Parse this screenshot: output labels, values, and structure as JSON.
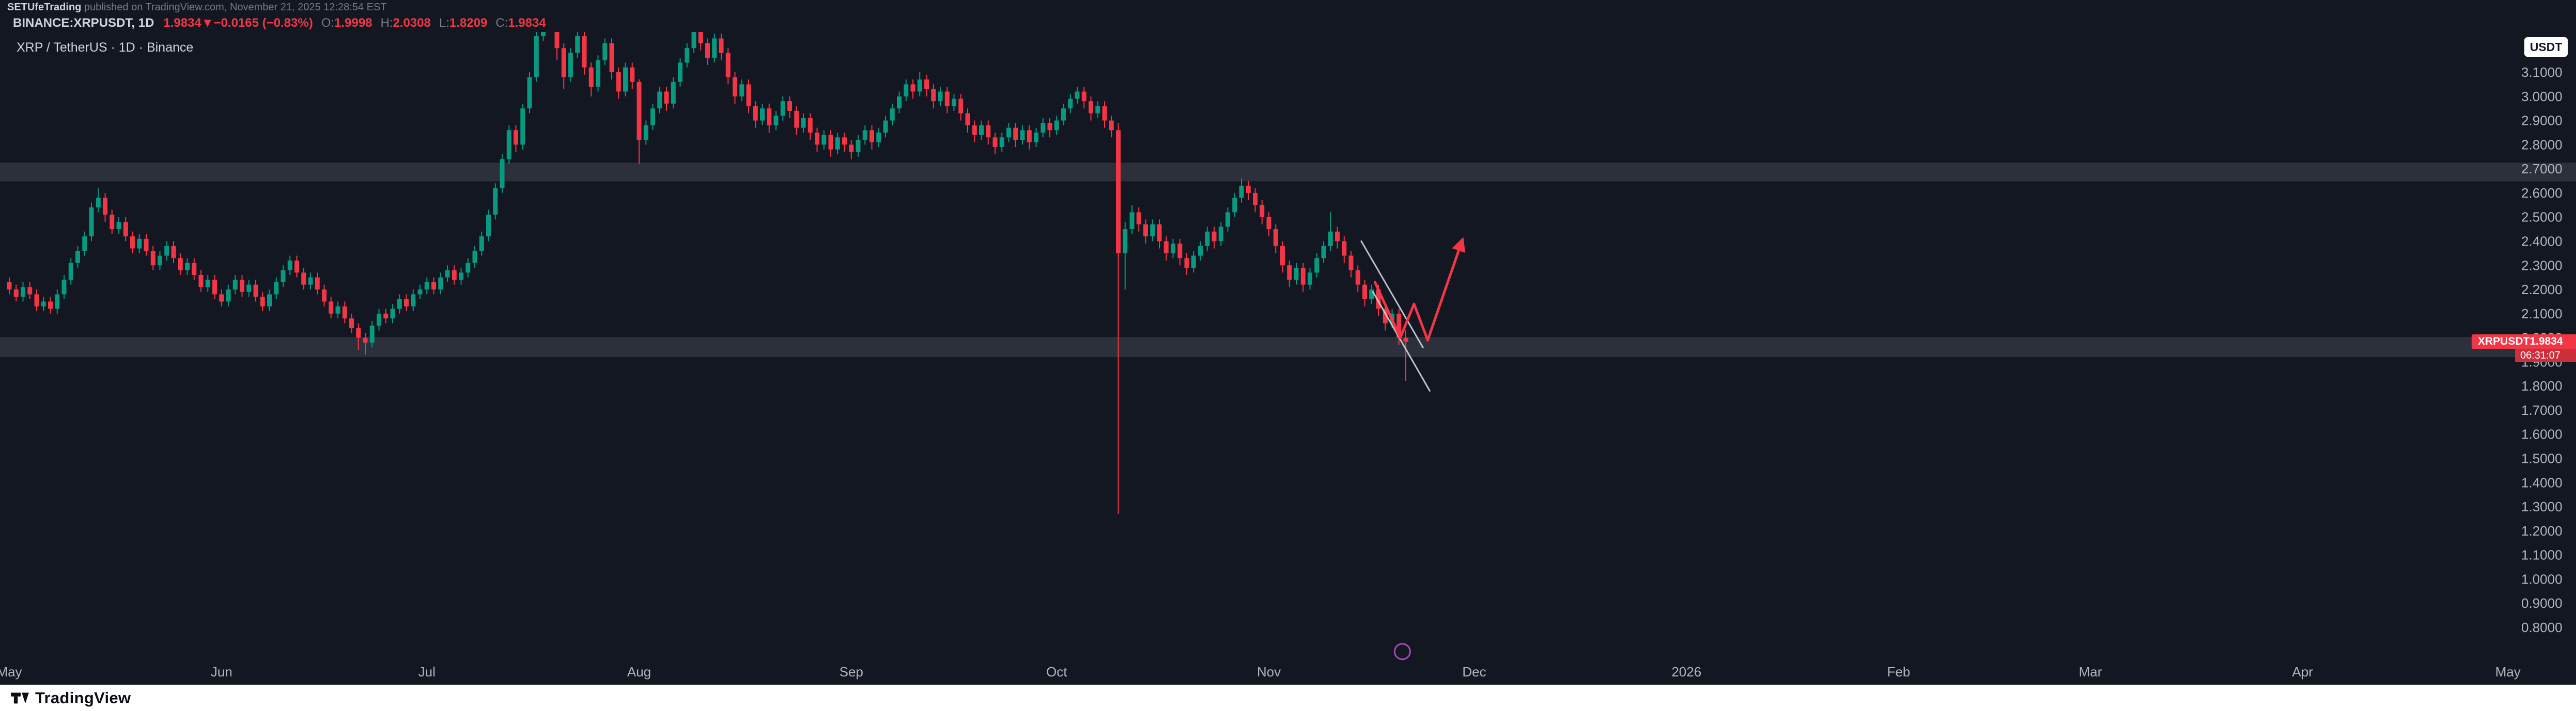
{
  "attribution": {
    "author": "SETUfeTrading",
    "text": " published on TradingView.com, November 21, 2025 12:28:54 EST"
  },
  "symbol_bar": {
    "symbol": "BINANCE:XRPUSDT, 1D",
    "price": "1.9834",
    "direction": "▼",
    "change": "−0.0165 (−0.83%)",
    "o_label": "O:",
    "o": "1.9998",
    "h_label": "H:",
    "h": "2.0308",
    "l_label": "L:",
    "l": "1.8209",
    "c_label": "C:",
    "c": "1.9834"
  },
  "chart_header": {
    "legend": "XRP / TetherUS · 1D · Binance",
    "currency_button": "USDT"
  },
  "price_label": {
    "symbol": "XRPUSDT",
    "price": "1.9834",
    "countdown": "06:31:07"
  },
  "footer": {
    "brand": "TradingView"
  },
  "colors": {
    "background": "#131722",
    "up": "#089981",
    "down": "#f23645",
    "axis_text": "#b2b5be"
  },
  "chart_data": {
    "type": "candlestick",
    "symbol": "XRP/USDT",
    "exchange": "Binance",
    "timeframe": "1D",
    "start_date": "2025-05-01",
    "last_close": 1.9834,
    "ylim_visible": [
      0.64,
      3.26
    ],
    "up_color": "#089981",
    "down_color": "#f23645",
    "zone_color": "rgba(178,181,190,0.16)",
    "price_axis": {
      "labels": [
        "3.1000",
        "3.0000",
        "2.9000",
        "2.8000",
        "2.7000",
        "2.6000",
        "2.5000",
        "2.4000",
        "2.3000",
        "2.2000",
        "2.1000",
        "2.0000",
        "1.9000",
        "1.8000",
        "1.7000",
        "1.6000",
        "1.5000",
        "1.4000",
        "1.3000",
        "1.2000",
        "1.1000",
        "1.0000",
        "0.9000",
        "0.8000"
      ]
    },
    "time_axis": [
      {
        "label": "May",
        "day": 0
      },
      {
        "label": "Jun",
        "day": 31
      },
      {
        "label": "Jul",
        "day": 61
      },
      {
        "label": "Aug",
        "day": 92
      },
      {
        "label": "Sep",
        "day": 123
      },
      {
        "label": "Oct",
        "day": 153
      },
      {
        "label": "Nov",
        "day": 184
      },
      {
        "label": "Dec",
        "day": 214
      },
      {
        "label": "2026",
        "day": 245
      },
      {
        "label": "Feb",
        "day": 276
      },
      {
        "label": "Mar",
        "day": 304
      },
      {
        "label": "Apr",
        "day": 335
      },
      {
        "label": "May",
        "day": 365
      }
    ],
    "zones": [
      {
        "from": 2.725,
        "to": 2.648,
        "name": "resistance-zone"
      },
      {
        "from": 2.003,
        "to": 1.92,
        "name": "support-zone"
      }
    ],
    "drawings": {
      "trendline_color": "#d1d4dc",
      "trendlines": [
        {
          "points": [
            [
              197.5,
              2.4
            ],
            [
              206.5,
              1.96
            ]
          ]
        },
        {
          "points": [
            [
              199.2,
              2.19
            ],
            [
              207.5,
              1.78
            ]
          ]
        }
      ],
      "arrow": {
        "color": "#f23645",
        "points": [
          [
            199.5,
            2.23
          ],
          [
            203.2,
            2.0
          ],
          [
            205.2,
            2.14
          ],
          [
            207.2,
            1.99
          ],
          [
            212.2,
            2.4
          ]
        ]
      },
      "marker_circle": {
        "day": 203.5,
        "price": 0.7,
        "color": "#ab47bc"
      }
    },
    "candles": [
      [
        2.23,
        2.25,
        2.18,
        2.2
      ],
      [
        2.2,
        2.22,
        2.15,
        2.17
      ],
      [
        2.17,
        2.23,
        2.15,
        2.21
      ],
      [
        2.21,
        2.23,
        2.16,
        2.18
      ],
      [
        2.18,
        2.2,
        2.11,
        2.13
      ],
      [
        2.13,
        2.17,
        2.11,
        2.15
      ],
      [
        2.15,
        2.17,
        2.1,
        2.12
      ],
      [
        2.12,
        2.2,
        2.1,
        2.18
      ],
      [
        2.18,
        2.26,
        2.16,
        2.24
      ],
      [
        2.24,
        2.33,
        2.22,
        2.31
      ],
      [
        2.31,
        2.38,
        2.29,
        2.36
      ],
      [
        2.36,
        2.44,
        2.34,
        2.42
      ],
      [
        2.42,
        2.56,
        2.4,
        2.54
      ],
      [
        2.54,
        2.62,
        2.52,
        2.58
      ],
      [
        2.58,
        2.6,
        2.48,
        2.51
      ],
      [
        2.51,
        2.53,
        2.43,
        2.45
      ],
      [
        2.45,
        2.5,
        2.43,
        2.48
      ],
      [
        2.48,
        2.5,
        2.4,
        2.42
      ],
      [
        2.42,
        2.44,
        2.35,
        2.37
      ],
      [
        2.37,
        2.43,
        2.35,
        2.41
      ],
      [
        2.41,
        2.43,
        2.34,
        2.36
      ],
      [
        2.36,
        2.38,
        2.28,
        2.3
      ],
      [
        2.3,
        2.36,
        2.28,
        2.34
      ],
      [
        2.34,
        2.4,
        2.32,
        2.38
      ],
      [
        2.38,
        2.4,
        2.31,
        2.33
      ],
      [
        2.33,
        2.35,
        2.26,
        2.28
      ],
      [
        2.28,
        2.33,
        2.26,
        2.31
      ],
      [
        2.31,
        2.33,
        2.24,
        2.26
      ],
      [
        2.26,
        2.28,
        2.19,
        2.21
      ],
      [
        2.21,
        2.26,
        2.19,
        2.24
      ],
      [
        2.24,
        2.26,
        2.16,
        2.18
      ],
      [
        2.18,
        2.2,
        2.13,
        2.15
      ],
      [
        2.15,
        2.22,
        2.13,
        2.2
      ],
      [
        2.2,
        2.26,
        2.18,
        2.24
      ],
      [
        2.24,
        2.26,
        2.17,
        2.19
      ],
      [
        2.19,
        2.24,
        2.17,
        2.22
      ],
      [
        2.22,
        2.24,
        2.15,
        2.17
      ],
      [
        2.17,
        2.19,
        2.11,
        2.13
      ],
      [
        2.13,
        2.2,
        2.11,
        2.18
      ],
      [
        2.18,
        2.25,
        2.16,
        2.23
      ],
      [
        2.23,
        2.3,
        2.21,
        2.28
      ],
      [
        2.28,
        2.34,
        2.26,
        2.32
      ],
      [
        2.32,
        2.34,
        2.25,
        2.27
      ],
      [
        2.27,
        2.29,
        2.2,
        2.22
      ],
      [
        2.22,
        2.27,
        2.2,
        2.25
      ],
      [
        2.25,
        2.27,
        2.18,
        2.2
      ],
      [
        2.2,
        2.22,
        2.13,
        2.15
      ],
      [
        2.15,
        2.17,
        2.08,
        2.1
      ],
      [
        2.1,
        2.15,
        2.08,
        2.13
      ],
      [
        2.13,
        2.15,
        2.06,
        2.08
      ],
      [
        2.08,
        2.1,
        2.02,
        2.04
      ],
      [
        2.04,
        2.06,
        1.95,
        2.0
      ],
      [
        2.0,
        2.02,
        1.93,
        1.98
      ],
      [
        1.98,
        2.07,
        1.96,
        2.05
      ],
      [
        2.05,
        2.12,
        2.03,
        2.1
      ],
      [
        2.1,
        2.12,
        2.06,
        2.08
      ],
      [
        2.08,
        2.14,
        2.06,
        2.12
      ],
      [
        2.12,
        2.18,
        2.1,
        2.16
      ],
      [
        2.16,
        2.18,
        2.11,
        2.13
      ],
      [
        2.13,
        2.2,
        2.11,
        2.18
      ],
      [
        2.18,
        2.22,
        2.16,
        2.2
      ],
      [
        2.2,
        2.25,
        2.18,
        2.23
      ],
      [
        2.23,
        2.25,
        2.18,
        2.2
      ],
      [
        2.2,
        2.27,
        2.18,
        2.25
      ],
      [
        2.25,
        2.3,
        2.23,
        2.28
      ],
      [
        2.28,
        2.3,
        2.22,
        2.24
      ],
      [
        2.24,
        2.29,
        2.22,
        2.27
      ],
      [
        2.27,
        2.33,
        2.25,
        2.31
      ],
      [
        2.31,
        2.38,
        2.29,
        2.36
      ],
      [
        2.36,
        2.44,
        2.34,
        2.42
      ],
      [
        2.42,
        2.53,
        2.4,
        2.51
      ],
      [
        2.51,
        2.64,
        2.49,
        2.62
      ],
      [
        2.62,
        2.76,
        2.6,
        2.74
      ],
      [
        2.74,
        2.88,
        2.72,
        2.86
      ],
      [
        2.86,
        2.88,
        2.77,
        2.8
      ],
      [
        2.8,
        2.97,
        2.78,
        2.95
      ],
      [
        2.95,
        3.1,
        2.93,
        3.08
      ],
      [
        3.08,
        3.27,
        3.06,
        3.25
      ],
      [
        3.25,
        3.65,
        3.23,
        3.45
      ],
      [
        3.45,
        3.55,
        3.33,
        3.38
      ],
      [
        3.38,
        3.4,
        3.15,
        3.2
      ],
      [
        3.2,
        3.22,
        3.03,
        3.08
      ],
      [
        3.08,
        3.2,
        3.06,
        3.18
      ],
      [
        3.18,
        3.28,
        3.16,
        3.25
      ],
      [
        3.25,
        3.27,
        3.09,
        3.12
      ],
      [
        3.12,
        3.14,
        3.0,
        3.04
      ],
      [
        3.04,
        3.17,
        3.02,
        3.15
      ],
      [
        3.15,
        3.24,
        3.13,
        3.22
      ],
      [
        3.22,
        3.24,
        3.07,
        3.1
      ],
      [
        3.1,
        3.12,
        2.99,
        3.02
      ],
      [
        3.02,
        3.14,
        3.0,
        3.12
      ],
      [
        3.12,
        3.14,
        3.03,
        3.06
      ],
      [
        3.06,
        3.07,
        2.72,
        2.82
      ],
      [
        2.82,
        2.9,
        2.8,
        2.88
      ],
      [
        2.88,
        2.97,
        2.86,
        2.95
      ],
      [
        2.95,
        3.04,
        2.93,
        3.02
      ],
      [
        3.02,
        3.04,
        2.94,
        2.97
      ],
      [
        2.97,
        3.08,
        2.95,
        3.06
      ],
      [
        3.06,
        3.16,
        3.04,
        3.14
      ],
      [
        3.14,
        3.22,
        3.12,
        3.2
      ],
      [
        3.2,
        3.31,
        3.18,
        3.28
      ],
      [
        3.28,
        3.3,
        3.19,
        3.22
      ],
      [
        3.22,
        3.24,
        3.13,
        3.16
      ],
      [
        3.16,
        3.26,
        3.14,
        3.24
      ],
      [
        3.24,
        3.26,
        3.15,
        3.18
      ],
      [
        3.18,
        3.2,
        3.05,
        3.08
      ],
      [
        3.08,
        3.1,
        2.97,
        3.0
      ],
      [
        3.0,
        3.07,
        2.98,
        3.05
      ],
      [
        3.05,
        3.07,
        2.93,
        2.96
      ],
      [
        2.96,
        2.98,
        2.87,
        2.9
      ],
      [
        2.9,
        2.97,
        2.88,
        2.95
      ],
      [
        2.95,
        2.97,
        2.85,
        2.88
      ],
      [
        2.88,
        2.94,
        2.86,
        2.92
      ],
      [
        2.92,
        3.0,
        2.9,
        2.98
      ],
      [
        2.98,
        3.0,
        2.91,
        2.94
      ],
      [
        2.94,
        2.96,
        2.84,
        2.87
      ],
      [
        2.87,
        2.93,
        2.85,
        2.91
      ],
      [
        2.91,
        2.93,
        2.82,
        2.85
      ],
      [
        2.85,
        2.87,
        2.77,
        2.8
      ],
      [
        2.8,
        2.86,
        2.78,
        2.84
      ],
      [
        2.84,
        2.86,
        2.75,
        2.78
      ],
      [
        2.78,
        2.85,
        2.76,
        2.83
      ],
      [
        2.83,
        2.85,
        2.77,
        2.8
      ],
      [
        2.8,
        2.82,
        2.74,
        2.77
      ],
      [
        2.77,
        2.84,
        2.75,
        2.82
      ],
      [
        2.82,
        2.88,
        2.8,
        2.86
      ],
      [
        2.86,
        2.88,
        2.78,
        2.81
      ],
      [
        2.81,
        2.87,
        2.79,
        2.85
      ],
      [
        2.85,
        2.92,
        2.83,
        2.9
      ],
      [
        2.9,
        2.97,
        2.88,
        2.95
      ],
      [
        2.95,
        3.02,
        2.93,
        3.0
      ],
      [
        3.0,
        3.07,
        2.98,
        3.05
      ],
      [
        3.05,
        3.07,
        2.99,
        3.02
      ],
      [
        3.02,
        3.1,
        3.0,
        3.07
      ],
      [
        3.07,
        3.09,
        3.0,
        3.03
      ],
      [
        3.03,
        3.05,
        2.95,
        2.98
      ],
      [
        2.98,
        3.04,
        2.96,
        3.02
      ],
      [
        3.02,
        3.04,
        2.93,
        2.96
      ],
      [
        2.96,
        3.01,
        2.94,
        2.99
      ],
      [
        2.99,
        3.01,
        2.9,
        2.93
      ],
      [
        2.93,
        2.95,
        2.85,
        2.88
      ],
      [
        2.88,
        2.9,
        2.81,
        2.84
      ],
      [
        2.84,
        2.9,
        2.82,
        2.88
      ],
      [
        2.88,
        2.9,
        2.8,
        2.83
      ],
      [
        2.83,
        2.85,
        2.76,
        2.79
      ],
      [
        2.79,
        2.85,
        2.77,
        2.83
      ],
      [
        2.83,
        2.89,
        2.81,
        2.87
      ],
      [
        2.87,
        2.89,
        2.79,
        2.82
      ],
      [
        2.82,
        2.88,
        2.8,
        2.86
      ],
      [
        2.86,
        2.88,
        2.78,
        2.81
      ],
      [
        2.81,
        2.87,
        2.79,
        2.85
      ],
      [
        2.85,
        2.91,
        2.83,
        2.89
      ],
      [
        2.89,
        2.91,
        2.83,
        2.86
      ],
      [
        2.86,
        2.92,
        2.84,
        2.9
      ],
      [
        2.9,
        2.97,
        2.88,
        2.95
      ],
      [
        2.95,
        3.01,
        2.93,
        2.99
      ],
      [
        2.99,
        3.04,
        2.97,
        3.02
      ],
      [
        3.02,
        3.04,
        2.95,
        2.98
      ],
      [
        2.98,
        3.0,
        2.9,
        2.93
      ],
      [
        2.93,
        2.98,
        2.91,
        2.96
      ],
      [
        2.96,
        2.98,
        2.87,
        2.9
      ],
      [
        2.9,
        2.92,
        2.83,
        2.86
      ],
      [
        2.86,
        2.89,
        1.27,
        2.35
      ],
      [
        2.35,
        2.48,
        2.2,
        2.45
      ],
      [
        2.45,
        2.55,
        2.43,
        2.52
      ],
      [
        2.52,
        2.54,
        2.44,
        2.47
      ],
      [
        2.47,
        2.49,
        2.39,
        2.42
      ],
      [
        2.42,
        2.49,
        2.4,
        2.47
      ],
      [
        2.47,
        2.49,
        2.37,
        2.4
      ],
      [
        2.4,
        2.42,
        2.32,
        2.35
      ],
      [
        2.35,
        2.41,
        2.33,
        2.39
      ],
      [
        2.39,
        2.41,
        2.3,
        2.33
      ],
      [
        2.33,
        2.35,
        2.26,
        2.29
      ],
      [
        2.29,
        2.36,
        2.27,
        2.34
      ],
      [
        2.34,
        2.4,
        2.32,
        2.38
      ],
      [
        2.38,
        2.46,
        2.36,
        2.44
      ],
      [
        2.44,
        2.46,
        2.37,
        2.4
      ],
      [
        2.4,
        2.48,
        2.38,
        2.46
      ],
      [
        2.46,
        2.54,
        2.44,
        2.52
      ],
      [
        2.52,
        2.6,
        2.5,
        2.58
      ],
      [
        2.58,
        2.66,
        2.56,
        2.63
      ],
      [
        2.63,
        2.65,
        2.57,
        2.6
      ],
      [
        2.6,
        2.62,
        2.52,
        2.55
      ],
      [
        2.55,
        2.57,
        2.47,
        2.5
      ],
      [
        2.5,
        2.52,
        2.42,
        2.45
      ],
      [
        2.45,
        2.47,
        2.35,
        2.38
      ],
      [
        2.38,
        2.4,
        2.27,
        2.3
      ],
      [
        2.3,
        2.32,
        2.21,
        2.24
      ],
      [
        2.24,
        2.31,
        2.22,
        2.29
      ],
      [
        2.29,
        2.31,
        2.19,
        2.22
      ],
      [
        2.22,
        2.29,
        2.2,
        2.27
      ],
      [
        2.27,
        2.35,
        2.25,
        2.33
      ],
      [
        2.33,
        2.4,
        2.31,
        2.38
      ],
      [
        2.38,
        2.52,
        2.36,
        2.44
      ],
      [
        2.44,
        2.46,
        2.37,
        2.4
      ],
      [
        2.4,
        2.42,
        2.31,
        2.34
      ],
      [
        2.34,
        2.36,
        2.25,
        2.28
      ],
      [
        2.28,
        2.3,
        2.19,
        2.22
      ],
      [
        2.22,
        2.24,
        2.13,
        2.16
      ],
      [
        2.16,
        2.22,
        2.14,
        2.2
      ],
      [
        2.2,
        2.22,
        2.09,
        2.12
      ],
      [
        2.12,
        2.14,
        2.03,
        2.06
      ],
      [
        2.06,
        2.12,
        2.04,
        2.1
      ],
      [
        2.1,
        2.12,
        1.97,
        2.0
      ],
      [
        1.9998,
        2.0308,
        1.8209,
        1.9834
      ]
    ]
  }
}
